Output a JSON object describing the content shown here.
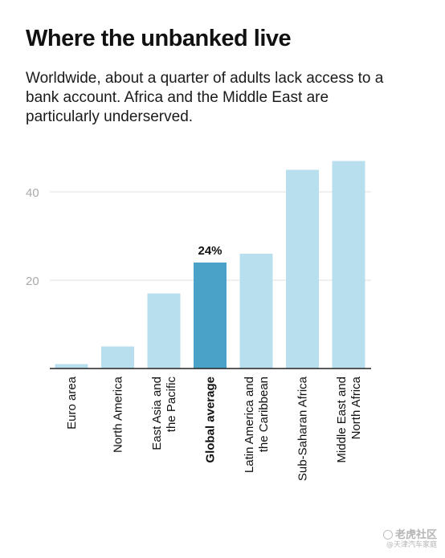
{
  "title": "Where the unbanked live",
  "subtitle": "Worldwide, about a quarter of adults lack access to a bank account. Africa and the Middle East are particularly underserved.",
  "watermark": {
    "main": "老虎社区",
    "sub": "@天津汽车家庭"
  },
  "colors": {
    "bar": "#b8dfed",
    "highlight": "#4aa2c9",
    "grid": "#e0e0e0",
    "axis": "#222222",
    "tick": "#aaaaaa"
  },
  "chart_data": {
    "type": "bar",
    "categories": [
      "Euro area",
      "North America",
      "East Asia and the Pacific",
      "Global average",
      "Latin America and the Caribbean",
      "Sub-Saharan Africa",
      "Middle East and North Africa"
    ],
    "values": [
      1,
      5,
      17,
      24,
      26,
      45,
      47
    ],
    "highlight_index": 3,
    "data_labels": [
      {
        "index": 3,
        "text": "24%"
      }
    ],
    "yticks": [
      20,
      40
    ],
    "ylim": [
      0,
      50
    ],
    "grid": true,
    "title": "Where the unbanked live",
    "xlabel": "",
    "ylabel": ""
  }
}
